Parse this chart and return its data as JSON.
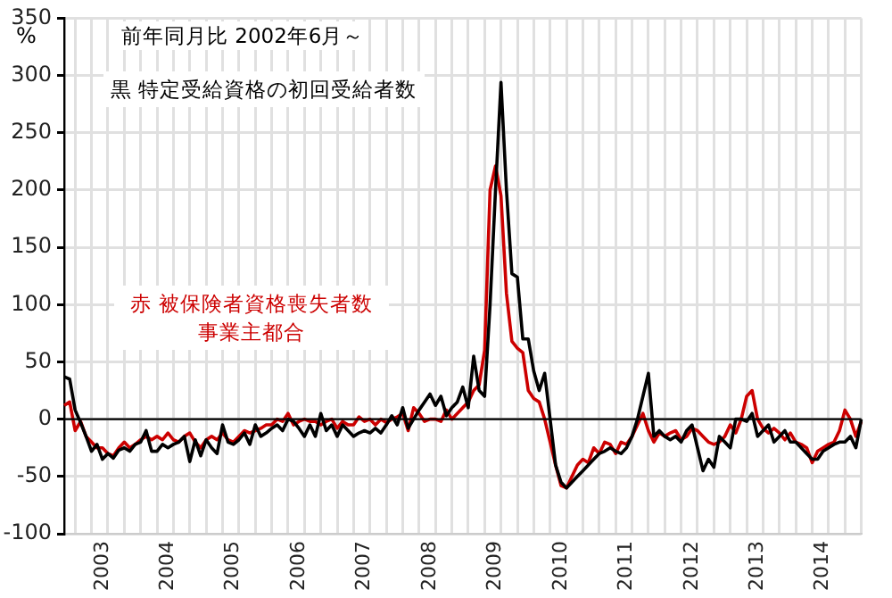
{
  "chart_data": {
    "type": "line",
    "title": "前年同月比 2002年6月～",
    "ylabel": "%",
    "categories": [
      null,
      null,
      null,
      null,
      null,
      null,
      null,
      "2003",
      null,
      null,
      null,
      null,
      null,
      null,
      null,
      null,
      null,
      null,
      null,
      "2004",
      null,
      null,
      null,
      null,
      null,
      null,
      null,
      null,
      null,
      null,
      null,
      "2005",
      null,
      null,
      null,
      null,
      null,
      null,
      null,
      null,
      null,
      null,
      null,
      "2006",
      null,
      null,
      null,
      null,
      null,
      null,
      null,
      null,
      null,
      null,
      null,
      "2007",
      null,
      null,
      null,
      null,
      null,
      null,
      null,
      null,
      null,
      null,
      null,
      "2008",
      null,
      null,
      null,
      null,
      null,
      null,
      null,
      null,
      null,
      null,
      null,
      "2009",
      null,
      null,
      null,
      null,
      null,
      null,
      null,
      null,
      null,
      null,
      null,
      "2010",
      null,
      null,
      null,
      null,
      null,
      null,
      null,
      null,
      null,
      null,
      null,
      "2011",
      null,
      null,
      null,
      null,
      null,
      null,
      null,
      null,
      null,
      null,
      null,
      "2012",
      null,
      null,
      null,
      null,
      null,
      null,
      null,
      null,
      null,
      null,
      null,
      "2013",
      null,
      null,
      null,
      null,
      null,
      null,
      null,
      null,
      null,
      null,
      null,
      "2014",
      null,
      null,
      null,
      null,
      null,
      null,
      null
    ],
    "series": [
      {
        "name": "黒  特定受給資格の初回受給者数",
        "color": "#000000",
        "values": [
          37,
          35,
          8,
          -3,
          -15,
          -28,
          -22,
          -35,
          -30,
          -34,
          -27,
          -25,
          -28,
          -22,
          -20,
          -10,
          -28,
          -28,
          -22,
          -25,
          -22,
          -20,
          -15,
          -37,
          -18,
          -32,
          -18,
          -25,
          -30,
          -5,
          -20,
          -22,
          -18,
          -12,
          -22,
          -5,
          -15,
          -12,
          -8,
          -5,
          -10,
          0,
          -2,
          -8,
          -15,
          -5,
          -15,
          5,
          -10,
          -5,
          -15,
          -5,
          -10,
          -15,
          -12,
          -10,
          -12,
          -8,
          -12,
          -5,
          3,
          -5,
          10,
          -8,
          0,
          8,
          15,
          22,
          12,
          20,
          3,
          10,
          15,
          28,
          10,
          55,
          25,
          20,
          100,
          200,
          294,
          200,
          127,
          124,
          70,
          70,
          42,
          25,
          40,
          0,
          -40,
          -55,
          -60,
          -55,
          -50,
          -45,
          -40,
          -35,
          -30,
          -28,
          -25,
          -28,
          -30,
          -25,
          -15,
          0,
          20,
          40,
          -15,
          -10,
          -15,
          -18,
          -15,
          -20,
          -10,
          -5,
          -25,
          -45,
          -35,
          -42,
          -15,
          -20,
          -25,
          0,
          0,
          -2,
          5,
          -15,
          -10,
          -5,
          -20,
          -15,
          -10,
          -20,
          -20,
          -25,
          -30,
          -35,
          -35,
          -28,
          -25,
          -22,
          -20,
          -20,
          -15,
          -25,
          0
        ]
      },
      {
        "name": "赤  被保険者資格喪失者数事業主都合",
        "color": "#cc0000",
        "values": [
          12,
          15,
          -10,
          -2,
          -15,
          -20,
          -25,
          -25,
          -30,
          -32,
          -25,
          -20,
          -25,
          -22,
          -18,
          -15,
          -18,
          -15,
          -18,
          -12,
          -18,
          -20,
          -15,
          -12,
          -20,
          -25,
          -18,
          -15,
          -18,
          -12,
          -18,
          -20,
          -15,
          -10,
          -12,
          -10,
          -8,
          -5,
          -5,
          0,
          -2,
          5,
          -5,
          -2,
          0,
          -2,
          -2,
          -5,
          -2,
          0,
          -8,
          -2,
          -5,
          -5,
          2,
          -2,
          0,
          -5,
          0,
          -3,
          0,
          2,
          5,
          -10,
          10,
          5,
          -2,
          0,
          0,
          -2,
          8,
          0,
          5,
          10,
          15,
          25,
          30,
          60,
          200,
          221,
          195,
          110,
          68,
          62,
          58,
          25,
          18,
          15,
          0,
          -20,
          -40,
          -58,
          -60,
          -50,
          -40,
          -35,
          -38,
          -25,
          -30,
          -20,
          -22,
          -30,
          -20,
          -22,
          -15,
          -5,
          5,
          -10,
          -20,
          -12,
          -15,
          -12,
          -10,
          -18,
          -15,
          -8,
          -10,
          -15,
          -20,
          -22,
          -20,
          -15,
          -5,
          -12,
          0,
          20,
          25,
          0,
          -8,
          -12,
          -8,
          -12,
          -18,
          -12,
          -20,
          -22,
          -25,
          -38,
          -28,
          -25,
          -22,
          -20,
          -10,
          8,
          0,
          -15,
          -2
        ]
      }
    ],
    "ylim": [
      -100,
      350
    ],
    "yticks": [
      -100,
      -50,
      0,
      50,
      100,
      150,
      200,
      250,
      300,
      350
    ],
    "grid": true,
    "marker": "none",
    "ref_lines": [
      {
        "axis": "y",
        "value": 0,
        "color": "#000000"
      }
    ]
  }
}
